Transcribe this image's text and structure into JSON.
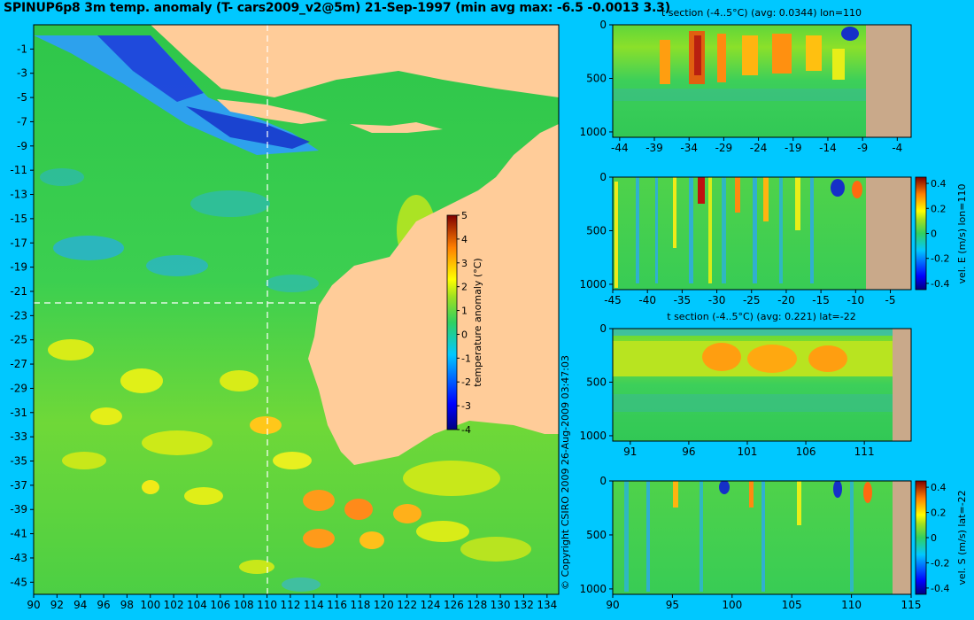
{
  "title": "SPINUP6p8 3m temp. anomaly (T- cars2009_v2@5m) 21-Sep-1997 (min avg max: -6.5 -0.0013 3.3)",
  "copyright": "© Copyright CSIRO 2009  26-Aug-2009 03:47:03",
  "colors": {
    "background": "#00c8ff",
    "land": "#ffcc99",
    "section_land": "#c9a98a",
    "crosshair": "#ffffff"
  },
  "chart_data": [
    {
      "id": "map",
      "type": "heatmap",
      "title": "SPINUP6p8 3m temp. anomaly (T- cars2009_v2@5m) 21-Sep-1997 (min avg max: -6.5 -0.0013 3.3)",
      "x_ticks": [
        "90",
        "92",
        "94",
        "96",
        "98",
        "100",
        "102",
        "104",
        "106",
        "108",
        "110",
        "112",
        "114",
        "116",
        "118",
        "120",
        "122",
        "124",
        "126",
        "128",
        "130",
        "132",
        "134"
      ],
      "y_ticks": [
        "-1",
        "-3",
        "-5",
        "-7",
        "-9",
        "-11",
        "-13",
        "-15",
        "-17",
        "-19",
        "-21",
        "-23",
        "-25",
        "-27",
        "-29",
        "-31",
        "-33",
        "-35",
        "-37",
        "-39",
        "-41",
        "-43",
        "-45"
      ],
      "xlim": [
        90,
        135
      ],
      "ylim": [
        -46,
        1
      ],
      "stats": {
        "min": -6.5,
        "avg": -0.0013,
        "max": 3.3
      },
      "crosshair": {
        "lon": 110,
        "lat": -22
      },
      "colorbar": {
        "label": "temperature anomaly (°C)",
        "ticks": [
          "5",
          "4",
          "3",
          "2",
          "1",
          "0",
          "-1",
          "-2",
          "-3",
          "-4"
        ],
        "range": [
          -4,
          5
        ]
      }
    },
    {
      "id": "t-section-lon",
      "type": "heatmap",
      "title": "t section (-4..5°C) (avg: 0.0344) lon=110",
      "x_ticks": [
        "-44",
        "-39",
        "-34",
        "-29",
        "-24",
        "-19",
        "-14",
        "-9",
        "-4"
      ],
      "y_ticks": [
        "0",
        "500",
        "1000"
      ],
      "xlim": [
        -45,
        -2
      ],
      "ylim": [
        1050,
        0
      ],
      "avg": 0.0344
    },
    {
      "id": "vel-e-section",
      "type": "heatmap",
      "title": "",
      "x_ticks": [
        "-45",
        "-40",
        "-35",
        "-30",
        "-25",
        "-20",
        "-15",
        "-10",
        "-5"
      ],
      "y_ticks": [
        "0",
        "500",
        "1000"
      ],
      "xlim": [
        -45,
        -2
      ],
      "ylim": [
        1050,
        0
      ],
      "colorbar": {
        "label": "vel. E (m/s) lon=110",
        "ticks": [
          "0.4",
          "0.2",
          "0",
          "-0.2",
          "-0.4"
        ],
        "range": [
          -0.45,
          0.45
        ]
      }
    },
    {
      "id": "t-section-lat",
      "type": "heatmap",
      "title": "t section (-4..5°C) (avg: 0.221) lat=-22",
      "x_ticks": [
        "91",
        "96",
        "101",
        "106",
        "111"
      ],
      "y_ticks": [
        "0",
        "500",
        "1000"
      ],
      "xlim": [
        89.5,
        115
      ],
      "ylim": [
        1050,
        0
      ],
      "avg": 0.221
    },
    {
      "id": "vel-s-section",
      "type": "heatmap",
      "title": "",
      "x_ticks": [
        "90",
        "95",
        "100",
        "105",
        "110",
        "115"
      ],
      "y_ticks": [
        "0",
        "500",
        "1000"
      ],
      "xlim": [
        90,
        115
      ],
      "ylim": [
        1050,
        0
      ],
      "colorbar": {
        "label": "vel. S (m/s) lat=-22",
        "ticks": [
          "0.4",
          "0.2",
          "0",
          "-0.2",
          "-0.4"
        ],
        "range": [
          -0.45,
          0.45
        ]
      }
    }
  ]
}
